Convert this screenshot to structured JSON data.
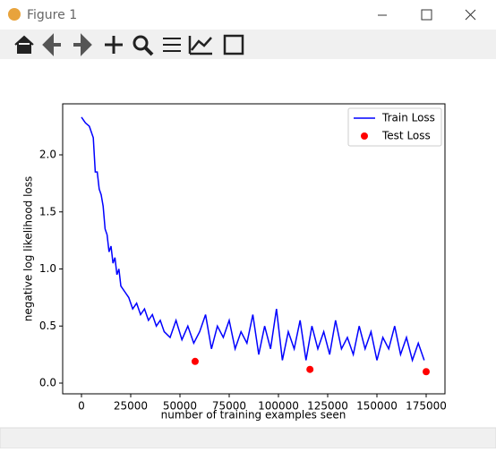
{
  "window": {
    "title": "Figure 1"
  },
  "chart_data": {
    "type": "line",
    "xlabel": "number of training examples seen",
    "ylabel": "negative log likelihood loss",
    "xlim": [
      -9545,
      184545
    ],
    "ylim": [
      -0.094,
      2.447
    ],
    "xticks": [
      0,
      25000,
      50000,
      75000,
      100000,
      125000,
      150000,
      175000
    ],
    "yticks": [
      {
        "value": 0,
        "label": "0.0"
      },
      0.5,
      {
        "value": 1,
        "label": "1.0"
      },
      1.5,
      {
        "value": 2,
        "label": "2.0"
      }
    ],
    "legend": "upper right",
    "series": [
      {
        "name": "Train Loss",
        "color": "#0000ff",
        "style": "line",
        "x": [
          0,
          2000,
          4000,
          6000,
          7000,
          8000,
          9000,
          10000,
          11000,
          12000,
          13000,
          14000,
          15000,
          16000,
          17000,
          18000,
          19000,
          20000,
          22000,
          24000,
          26000,
          28000,
          30000,
          32000,
          34000,
          36000,
          38000,
          40000,
          42000,
          45000,
          48000,
          51000,
          54000,
          57000,
          60000,
          63000,
          66000,
          69000,
          72000,
          75000,
          78000,
          81000,
          84000,
          87000,
          90000,
          93000,
          96000,
          99000,
          102000,
          105000,
          108000,
          111000,
          114000,
          117000,
          120000,
          123000,
          126000,
          129000,
          132000,
          135000,
          138000,
          141000,
          144000,
          147000,
          150000,
          153000,
          156000,
          159000,
          162000,
          165000,
          168000,
          171000,
          174000
        ],
        "values": [
          2.33,
          2.28,
          2.25,
          2.15,
          1.85,
          1.85,
          1.7,
          1.65,
          1.55,
          1.35,
          1.3,
          1.15,
          1.2,
          1.05,
          1.1,
          0.95,
          1.0,
          0.85,
          0.8,
          0.75,
          0.65,
          0.7,
          0.6,
          0.65,
          0.55,
          0.6,
          0.5,
          0.55,
          0.45,
          0.4,
          0.55,
          0.38,
          0.5,
          0.35,
          0.45,
          0.6,
          0.3,
          0.5,
          0.4,
          0.55,
          0.3,
          0.45,
          0.35,
          0.6,
          0.25,
          0.5,
          0.3,
          0.65,
          0.2,
          0.45,
          0.3,
          0.55,
          0.2,
          0.5,
          0.3,
          0.45,
          0.25,
          0.55,
          0.3,
          0.4,
          0.25,
          0.5,
          0.3,
          0.45,
          0.2,
          0.4,
          0.3,
          0.5,
          0.25,
          0.4,
          0.2,
          0.35,
          0.2
        ]
      },
      {
        "name": "Test Loss",
        "color": "#ff0000",
        "style": "scatter",
        "x": [
          57700,
          116000,
          175000
        ],
        "values": [
          0.19,
          0.12,
          0.1
        ]
      }
    ]
  }
}
